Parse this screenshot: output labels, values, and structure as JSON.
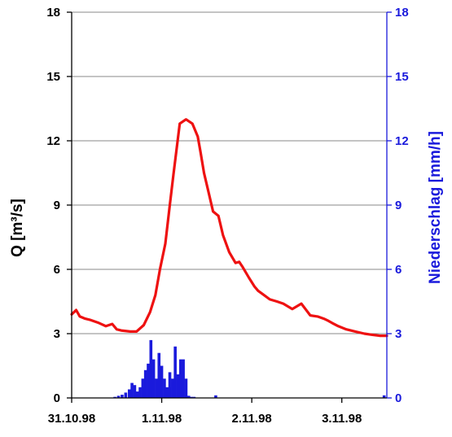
{
  "chart_data": {
    "type": "line",
    "xlabel": "",
    "x_tick_labels": [
      "31.10.98",
      "1.11.98",
      "2.11.98",
      "3.11.98"
    ],
    "x_ticks_days": [
      0,
      1,
      2,
      3
    ],
    "xlim_days": [
      0,
      3.5
    ],
    "y_left": {
      "label": "Q [m³/s]",
      "ylim": [
        0,
        18
      ],
      "ticks": [
        "0",
        "3",
        "6",
        "9",
        "12",
        "15",
        "18"
      ],
      "color": "#000000"
    },
    "y_right": {
      "label": "Niederschlag [mm/h]",
      "ylim": [
        0,
        18
      ],
      "ticks": [
        "0",
        "3",
        "6",
        "9",
        "12",
        "15",
        "18"
      ],
      "color": "#1a1adc"
    },
    "grid": "horizontal",
    "series": [
      {
        "kind": "line",
        "axis": "left",
        "color": "#ee1111",
        "x": [
          0,
          0.05,
          0.09,
          0.15,
          0.2,
          0.3,
          0.38,
          0.45,
          0.5,
          0.55,
          0.65,
          0.72,
          0.8,
          0.87,
          0.93,
          0.98,
          1.04,
          1.09,
          1.13,
          1.2,
          1.27,
          1.34,
          1.4,
          1.43,
          1.47,
          1.52,
          1.57,
          1.63,
          1.68,
          1.75,
          1.82,
          1.86,
          1.9,
          1.97,
          2.03,
          2.07,
          2.12,
          2.2,
          2.28,
          2.35,
          2.45,
          2.55,
          2.65,
          2.73,
          2.8,
          2.85,
          2.89,
          2.96,
          3.05,
          3.15,
          3.25,
          3.33,
          3.42,
          3.5
        ],
        "y": [
          3.9,
          4.1,
          3.8,
          3.7,
          3.65,
          3.5,
          3.35,
          3.45,
          3.2,
          3.15,
          3.1,
          3.1,
          3.4,
          4.0,
          4.8,
          6.0,
          7.2,
          9.0,
          10.4,
          12.8,
          13.0,
          12.8,
          12.2,
          11.5,
          10.5,
          9.6,
          8.7,
          8.5,
          7.6,
          6.8,
          6.3,
          6.35,
          6.1,
          5.6,
          5.2,
          5.0,
          4.85,
          4.6,
          4.5,
          4.4,
          4.15,
          4.4,
          3.85,
          3.8,
          3.7,
          3.6,
          3.5,
          3.35,
          3.2,
          3.1,
          3.0,
          2.95,
          2.9,
          2.9
        ]
      },
      {
        "kind": "bar",
        "axis": "right",
        "color": "#1a1adc",
        "x": [
          0.48,
          0.52,
          0.56,
          0.6,
          0.64,
          0.67,
          0.7,
          0.73,
          0.76,
          0.79,
          0.82,
          0.85,
          0.88,
          0.91,
          0.94,
          0.97,
          1.0,
          1.03,
          1.06,
          1.09,
          1.12,
          1.15,
          1.18,
          1.21,
          1.24,
          1.27,
          1.3,
          1.33,
          1.36,
          1.6,
          3.47
        ],
        "values": [
          0.05,
          0.1,
          0.15,
          0.25,
          0.4,
          0.7,
          0.6,
          0.3,
          0.5,
          0.9,
          1.3,
          1.6,
          2.7,
          1.8,
          0.9,
          2.1,
          1.5,
          0.9,
          0.5,
          1.2,
          0.9,
          2.4,
          1.1,
          1.8,
          1.8,
          0.9,
          0.1,
          0.05,
          0.05,
          0.12,
          0.12
        ]
      }
    ]
  }
}
